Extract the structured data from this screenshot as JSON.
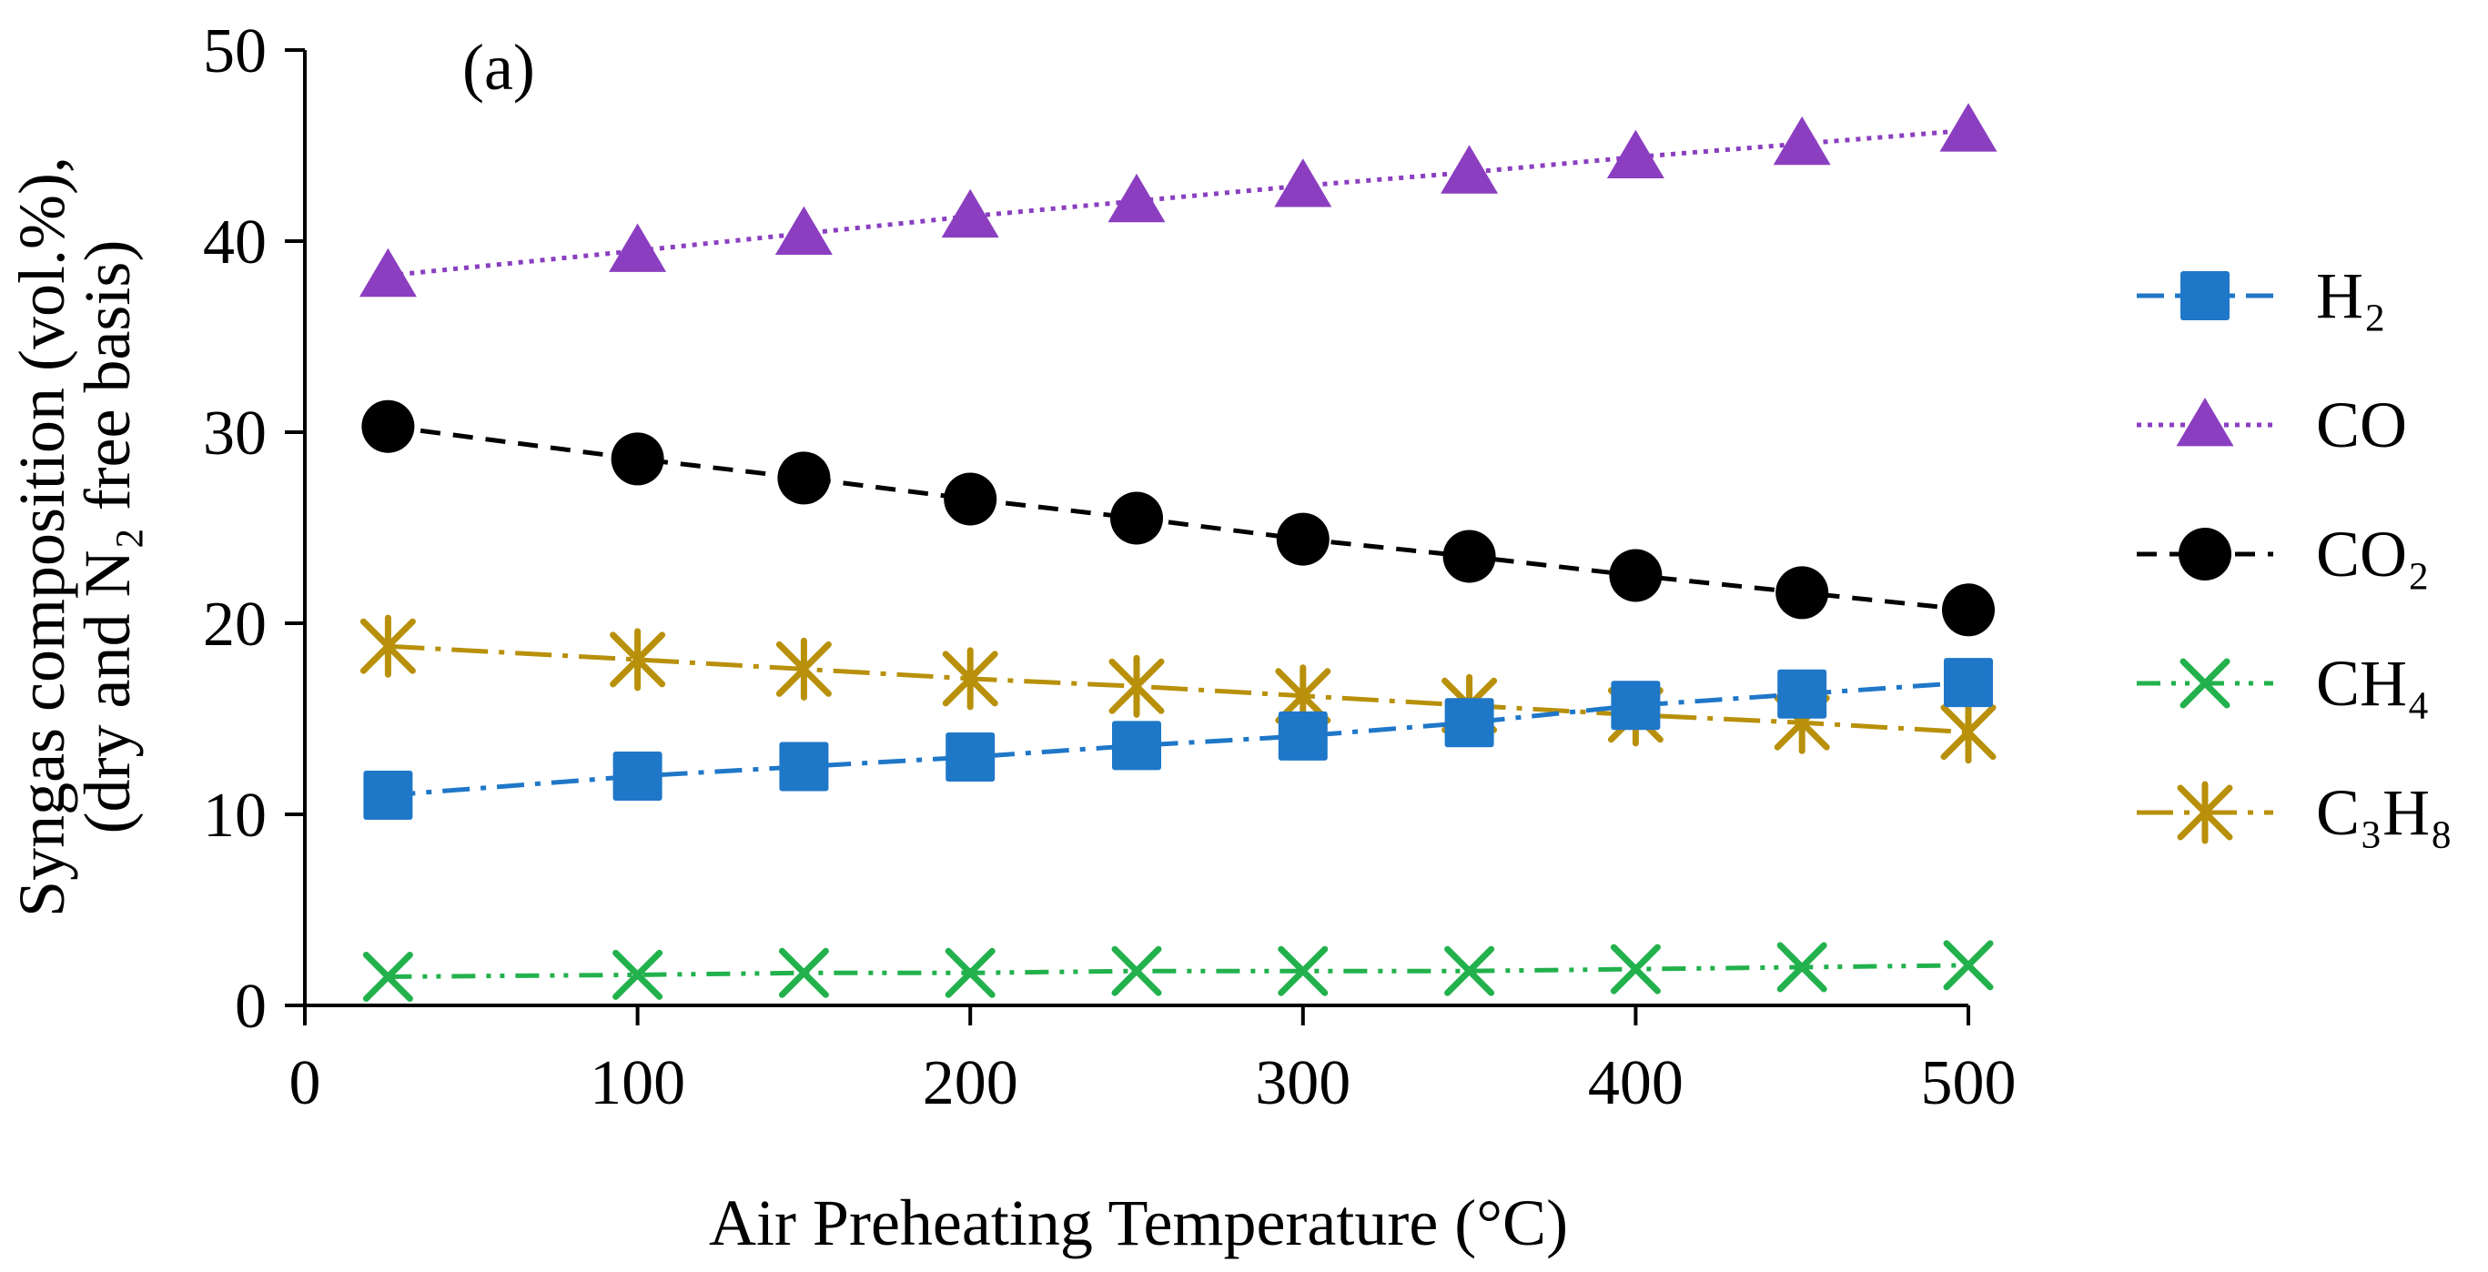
{
  "chart_data": {
    "type": "line",
    "panel_label": "(a)",
    "title": "",
    "xlabel": "Air Preheating Temperature (°C)",
    "ylabel_line1": "Syngas composition (vol.%),",
    "ylabel_line2": "(dry and N₂ free basis)",
    "xlim": [
      0,
      500
    ],
    "ylim": [
      0,
      50
    ],
    "xticks": [
      0,
      100,
      200,
      300,
      400,
      500
    ],
    "yticks": [
      0,
      10,
      20,
      30,
      40,
      50
    ],
    "x": [
      25,
      100,
      150,
      200,
      250,
      300,
      350,
      400,
      450,
      500
    ],
    "legend_position": "right",
    "series": [
      {
        "name": "H₂",
        "color": "#1F77C8",
        "marker": "square",
        "dash": "dashdot",
        "values": [
          11.0,
          12.0,
          12.5,
          13.0,
          13.6,
          14.1,
          14.8,
          15.7,
          16.3,
          16.9
        ]
      },
      {
        "name": "CO",
        "color": "#8B3FC0",
        "marker": "triangle",
        "dash": "dotted",
        "values": [
          38.2,
          39.5,
          40.4,
          41.3,
          42.1,
          42.9,
          43.6,
          44.4,
          45.1,
          45.8
        ]
      },
      {
        "name": "CO₂",
        "color": "#000000",
        "marker": "circle",
        "dash": "dashed",
        "values": [
          30.3,
          28.6,
          27.6,
          26.5,
          25.5,
          24.4,
          23.5,
          22.5,
          21.6,
          20.7
        ]
      },
      {
        "name": "CH₄",
        "color": "#22B14C",
        "marker": "x",
        "dash": "dashdotdot",
        "values": [
          1.5,
          1.6,
          1.7,
          1.7,
          1.8,
          1.8,
          1.8,
          1.9,
          2.0,
          2.1
        ]
      },
      {
        "name": "C₃H₈",
        "color": "#B8900A",
        "marker": "star",
        "dash": "longdashdot",
        "values": [
          18.8,
          18.1,
          17.6,
          17.1,
          16.7,
          16.2,
          15.7,
          15.2,
          14.8,
          14.3
        ]
      }
    ]
  }
}
